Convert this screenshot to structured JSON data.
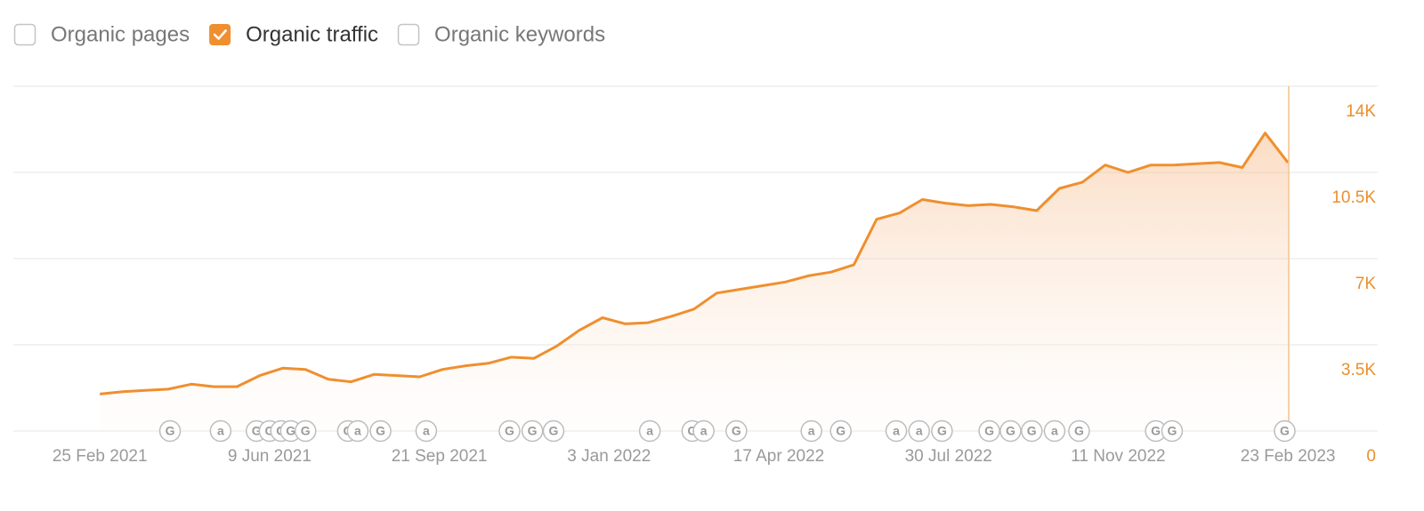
{
  "toggles": [
    {
      "label": "Organic pages",
      "checked": false
    },
    {
      "label": "Organic traffic",
      "checked": true
    },
    {
      "label": "Organic keywords",
      "checked": false
    }
  ],
  "chart_data": {
    "type": "area",
    "color": "#ef8f2f",
    "grid": true,
    "x": [
      "2021-02-25",
      "2021-03-11",
      "2021-03-25",
      "2021-04-08",
      "2021-04-22",
      "2021-05-06",
      "2021-05-20",
      "2021-06-03",
      "2021-06-17",
      "2021-07-01",
      "2021-07-15",
      "2021-07-29",
      "2021-08-12",
      "2021-08-26",
      "2021-09-09",
      "2021-09-23",
      "2021-10-07",
      "2021-10-21",
      "2021-11-04",
      "2021-11-18",
      "2021-12-02",
      "2021-12-16",
      "2021-12-30",
      "2022-01-13",
      "2022-01-27",
      "2022-02-10",
      "2022-02-24",
      "2022-03-10",
      "2022-03-24",
      "2022-04-07",
      "2022-04-21",
      "2022-05-05",
      "2022-05-19",
      "2022-06-02",
      "2022-06-16",
      "2022-06-30",
      "2022-07-14",
      "2022-07-28",
      "2022-08-11",
      "2022-08-25",
      "2022-09-08",
      "2022-09-22",
      "2022-10-06",
      "2022-10-20",
      "2022-11-03",
      "2022-11-17",
      "2022-12-01",
      "2022-12-15",
      "2022-12-29",
      "2023-01-12",
      "2023-01-26",
      "2023-02-09",
      "2023-02-23"
    ],
    "values": [
      1500,
      1600,
      1650,
      1700,
      1900,
      1800,
      1800,
      2250,
      2550,
      2500,
      2100,
      2000,
      2300,
      2250,
      2200,
      2500,
      2650,
      2750,
      3000,
      2950,
      3450,
      4100,
      4600,
      4350,
      4400,
      4650,
      4950,
      5600,
      5750,
      5900,
      6050,
      6300,
      6450,
      6750,
      8600,
      8850,
      9400,
      9250,
      9150,
      9200,
      9100,
      8950,
      9850,
      10100,
      10800,
      10500,
      10800,
      10800,
      10850,
      10900,
      10700,
      12100,
      10900
    ],
    "xlim": [
      "2021-01-03",
      "2023-04-19"
    ],
    "xticks": [
      {
        "value": "2021-02-25",
        "label": "25 Feb 2021"
      },
      {
        "value": "2021-06-09",
        "label": "9 Jun 2021"
      },
      {
        "value": "2021-09-21",
        "label": "21 Sep 2021"
      },
      {
        "value": "2022-01-03",
        "label": "3 Jan 2022"
      },
      {
        "value": "2022-04-17",
        "label": "17 Apr 2022"
      },
      {
        "value": "2022-07-30",
        "label": "30 Jul 2022"
      },
      {
        "value": "2022-11-11",
        "label": "11 Nov 2022"
      },
      {
        "value": "2023-02-23",
        "label": "23 Feb 2023"
      }
    ],
    "ylim": [
      0,
      14000
    ],
    "yticks": [
      0,
      {
        "value": 3500,
        "label": "3.5K"
      },
      {
        "value": 7000,
        "label": "7K"
      },
      {
        "value": 10500,
        "label": "10.5K"
      },
      {
        "value": 14000,
        "label": "14K"
      }
    ],
    "events": [
      {
        "x": "2021-04-09",
        "label": "G"
      },
      {
        "x": "2021-05-10",
        "label": "a"
      },
      {
        "x": "2021-06-01",
        "label": "G"
      },
      {
        "x": "2021-06-09",
        "label": "G"
      },
      {
        "x": "2021-06-16",
        "label": "G"
      },
      {
        "x": "2021-06-22",
        "label": "G"
      },
      {
        "x": "2021-07-01",
        "label": "G"
      },
      {
        "x": "2021-07-27",
        "label": "G"
      },
      {
        "x": "2021-08-02",
        "label": "a"
      },
      {
        "x": "2021-08-16",
        "label": "G"
      },
      {
        "x": "2021-09-13",
        "label": "a"
      },
      {
        "x": "2021-11-03",
        "label": "G"
      },
      {
        "x": "2021-11-17",
        "label": "G"
      },
      {
        "x": "2021-11-30",
        "label": "G"
      },
      {
        "x": "2022-01-28",
        "label": "a"
      },
      {
        "x": "2022-02-23",
        "label": "G"
      },
      {
        "x": "2022-03-02",
        "label": "a"
      },
      {
        "x": "2022-03-22",
        "label": "G"
      },
      {
        "x": "2022-05-07",
        "label": "a"
      },
      {
        "x": "2022-05-25",
        "label": "G"
      },
      {
        "x": "2022-06-28",
        "label": "a"
      },
      {
        "x": "2022-07-12",
        "label": "a"
      },
      {
        "x": "2022-07-26",
        "label": "G"
      },
      {
        "x": "2022-08-24",
        "label": "G"
      },
      {
        "x": "2022-09-06",
        "label": "G"
      },
      {
        "x": "2022-09-19",
        "label": "G"
      },
      {
        "x": "2022-10-03",
        "label": "a"
      },
      {
        "x": "2022-10-18",
        "label": "G"
      },
      {
        "x": "2022-12-04",
        "label": "G"
      },
      {
        "x": "2022-12-14",
        "label": "G"
      },
      {
        "x": "2023-02-21",
        "label": "G"
      }
    ]
  }
}
